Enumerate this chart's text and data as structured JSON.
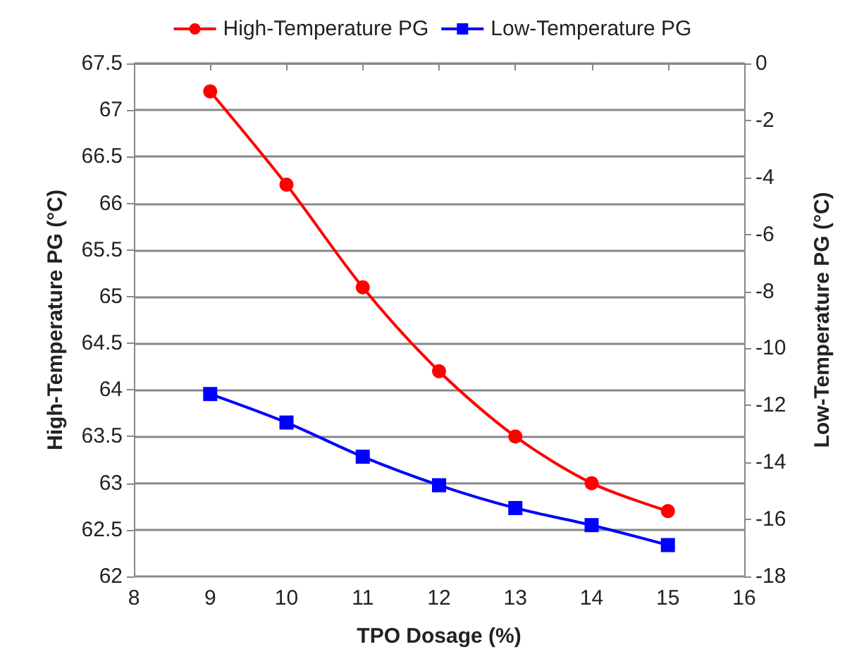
{
  "chart_data": {
    "type": "line",
    "xlabel": "TPO Dosage (%)",
    "ylabel": "High-Temperature PG (°C)",
    "y2label": "Low-Temperature PG (°C)",
    "x": [
      9,
      10,
      11,
      12,
      13,
      14,
      15
    ],
    "series": [
      {
        "name": "High-Temperature PG",
        "color": "#ff0000",
        "marker": "circle",
        "values": [
          67.2,
          66.2,
          65.1,
          64.2,
          63.5,
          63.0,
          62.7
        ]
      },
      {
        "name": "Low-Temperature PG",
        "color": "#0000ff",
        "marker": "square",
        "axis": "y2",
        "values": [
          -11.6,
          -12.6,
          -13.8,
          -14.8,
          -15.6,
          -16.2,
          -16.9
        ]
      }
    ],
    "xlim": [
      8,
      16
    ],
    "xticks": [
      8,
      9,
      10,
      11,
      12,
      13,
      14,
      15,
      16
    ],
    "ylim": [
      62,
      67.5
    ],
    "yticks": [
      62,
      62.5,
      63,
      63.5,
      64,
      64.5,
      65,
      65.5,
      66,
      66.5,
      67,
      67.5
    ],
    "y2lim": [
      -18,
      0
    ],
    "y2ticks": [
      -18,
      -16,
      -14,
      -12,
      -10,
      -8,
      -6,
      -4,
      -2,
      0
    ],
    "grid": "y",
    "legend": "top"
  }
}
